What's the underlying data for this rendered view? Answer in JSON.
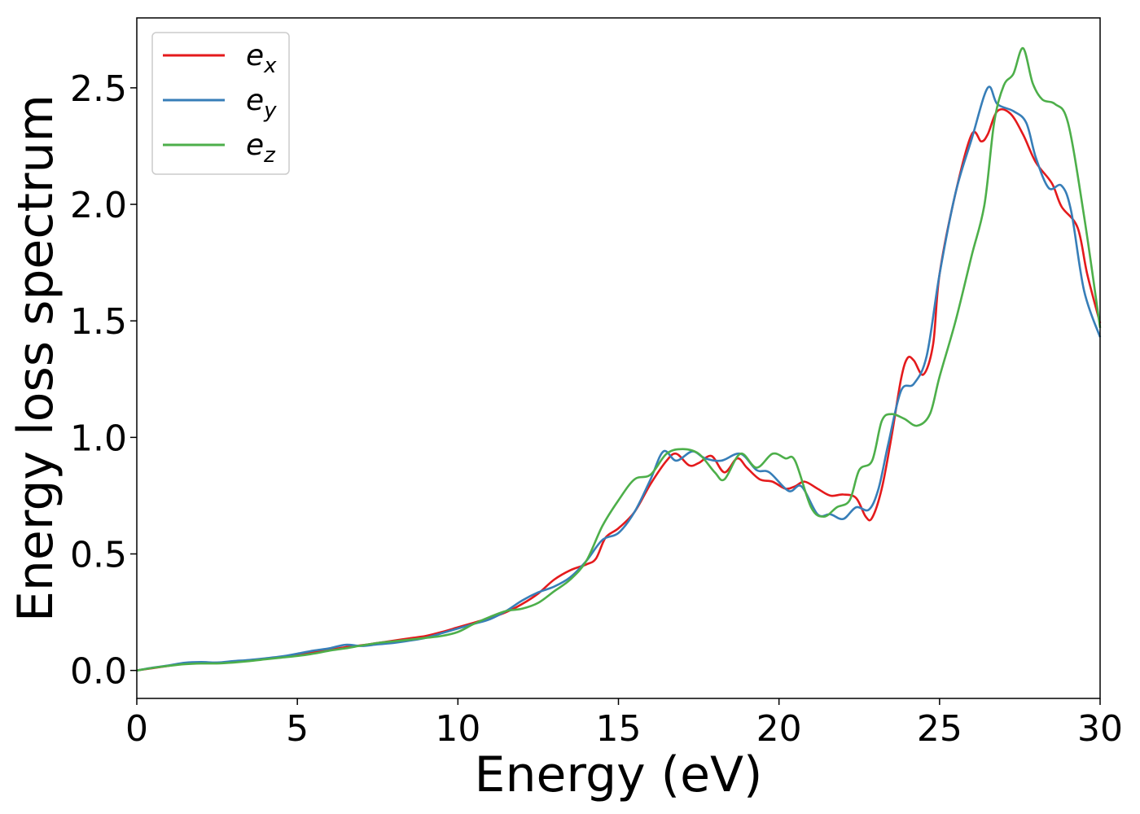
{
  "chart_data": {
    "type": "line",
    "title": "",
    "xlabel": "Energy (eV)",
    "ylabel": "Energy loss spectrum",
    "xlim": [
      0,
      30
    ],
    "ylim": [
      -0.12,
      2.8
    ],
    "xticks": [
      0,
      5,
      10,
      15,
      20,
      25,
      30
    ],
    "xtick_labels": [
      "0",
      "5",
      "10",
      "15",
      "20",
      "25",
      "30"
    ],
    "yticks": [
      0.0,
      0.5,
      1.0,
      1.5,
      2.0,
      2.5
    ],
    "ytick_labels": [
      "0.0",
      "0.5",
      "1.0",
      "1.5",
      "2.0",
      "2.5"
    ],
    "grid": false,
    "legend_position": "top-left",
    "series": [
      {
        "name": "e",
        "sub": "x",
        "color": "#e41a1c",
        "points": [
          [
            0,
            0.0
          ],
          [
            0.5,
            0.01
          ],
          [
            1,
            0.02
          ],
          [
            1.5,
            0.03
          ],
          [
            2,
            0.032
          ],
          [
            2.5,
            0.033
          ],
          [
            3,
            0.037
          ],
          [
            3.5,
            0.042
          ],
          [
            4,
            0.05
          ],
          [
            4.5,
            0.058
          ],
          [
            5,
            0.067
          ],
          [
            5.5,
            0.078
          ],
          [
            6,
            0.088
          ],
          [
            6.5,
            0.1
          ],
          [
            7,
            0.108
          ],
          [
            7.5,
            0.118
          ],
          [
            8,
            0.128
          ],
          [
            8.5,
            0.138
          ],
          [
            9,
            0.148
          ],
          [
            9.5,
            0.165
          ],
          [
            10,
            0.185
          ],
          [
            10.5,
            0.205
          ],
          [
            11,
            0.225
          ],
          [
            11.5,
            0.25
          ],
          [
            12,
            0.285
          ],
          [
            12.5,
            0.33
          ],
          [
            13,
            0.39
          ],
          [
            13.5,
            0.43
          ],
          [
            14,
            0.455
          ],
          [
            14.3,
            0.48
          ],
          [
            14.6,
            0.57
          ],
          [
            15,
            0.61
          ],
          [
            15.5,
            0.68
          ],
          [
            16,
            0.8
          ],
          [
            16.5,
            0.9
          ],
          [
            16.8,
            0.93
          ],
          [
            17.2,
            0.88
          ],
          [
            17.5,
            0.89
          ],
          [
            17.9,
            0.92
          ],
          [
            18.3,
            0.85
          ],
          [
            18.7,
            0.91
          ],
          [
            19,
            0.87
          ],
          [
            19.4,
            0.82
          ],
          [
            19.8,
            0.81
          ],
          [
            20.2,
            0.78
          ],
          [
            20.5,
            0.79
          ],
          [
            20.8,
            0.81
          ],
          [
            21.2,
            0.78
          ],
          [
            21.6,
            0.75
          ],
          [
            22,
            0.755
          ],
          [
            22.4,
            0.74
          ],
          [
            22.7,
            0.66
          ],
          [
            22.9,
            0.655
          ],
          [
            23.2,
            0.78
          ],
          [
            23.5,
            1.0
          ],
          [
            23.8,
            1.25
          ],
          [
            24,
            1.34
          ],
          [
            24.2,
            1.33
          ],
          [
            24.5,
            1.27
          ],
          [
            24.8,
            1.4
          ],
          [
            25,
            1.7
          ],
          [
            25.5,
            2.05
          ],
          [
            26,
            2.3
          ],
          [
            26.3,
            2.27
          ],
          [
            26.5,
            2.3
          ],
          [
            26.8,
            2.4
          ],
          [
            27.2,
            2.39
          ],
          [
            27.6,
            2.3
          ],
          [
            28,
            2.18
          ],
          [
            28.5,
            2.09
          ],
          [
            28.8,
            1.99
          ],
          [
            29.3,
            1.9
          ],
          [
            29.6,
            1.7
          ],
          [
            30,
            1.49
          ]
        ]
      },
      {
        "name": "e",
        "sub": "y",
        "color": "#377eb8",
        "points": [
          [
            0,
            0.0
          ],
          [
            0.5,
            0.012
          ],
          [
            1,
            0.022
          ],
          [
            1.5,
            0.033
          ],
          [
            2,
            0.036
          ],
          [
            2.5,
            0.034
          ],
          [
            3,
            0.04
          ],
          [
            3.5,
            0.045
          ],
          [
            4,
            0.052
          ],
          [
            4.5,
            0.06
          ],
          [
            5,
            0.072
          ],
          [
            5.5,
            0.085
          ],
          [
            6,
            0.095
          ],
          [
            6.5,
            0.11
          ],
          [
            7,
            0.105
          ],
          [
            7.5,
            0.112
          ],
          [
            8,
            0.118
          ],
          [
            8.5,
            0.128
          ],
          [
            9,
            0.14
          ],
          [
            9.5,
            0.16
          ],
          [
            10,
            0.18
          ],
          [
            10.5,
            0.2
          ],
          [
            11,
            0.22
          ],
          [
            11.5,
            0.255
          ],
          [
            12,
            0.3
          ],
          [
            12.5,
            0.335
          ],
          [
            13,
            0.36
          ],
          [
            13.5,
            0.4
          ],
          [
            14,
            0.47
          ],
          [
            14.5,
            0.56
          ],
          [
            15,
            0.59
          ],
          [
            15.5,
            0.68
          ],
          [
            16,
            0.82
          ],
          [
            16.4,
            0.94
          ],
          [
            16.8,
            0.9
          ],
          [
            17.3,
            0.94
          ],
          [
            17.7,
            0.91
          ],
          [
            18.2,
            0.9
          ],
          [
            18.8,
            0.93
          ],
          [
            19.3,
            0.86
          ],
          [
            19.7,
            0.85
          ],
          [
            20.3,
            0.77
          ],
          [
            20.7,
            0.79
          ],
          [
            21.2,
            0.67
          ],
          [
            21.6,
            0.67
          ],
          [
            22,
            0.65
          ],
          [
            22.4,
            0.7
          ],
          [
            22.8,
            0.69
          ],
          [
            23.1,
            0.78
          ],
          [
            23.4,
            0.97
          ],
          [
            23.8,
            1.2
          ],
          [
            24.2,
            1.23
          ],
          [
            24.6,
            1.35
          ],
          [
            25,
            1.7
          ],
          [
            25.5,
            2.05
          ],
          [
            26,
            2.28
          ],
          [
            26.5,
            2.5
          ],
          [
            26.8,
            2.43
          ],
          [
            27.3,
            2.4
          ],
          [
            27.7,
            2.35
          ],
          [
            28,
            2.2
          ],
          [
            28.4,
            2.07
          ],
          [
            28.8,
            2.08
          ],
          [
            29.1,
            1.97
          ],
          [
            29.5,
            1.63
          ],
          [
            30,
            1.43
          ]
        ]
      },
      {
        "name": "e",
        "sub": "z",
        "color": "#4daf4a",
        "points": [
          [
            0,
            0.0
          ],
          [
            0.5,
            0.011
          ],
          [
            1,
            0.02
          ],
          [
            1.5,
            0.027
          ],
          [
            2,
            0.03
          ],
          [
            2.5,
            0.03
          ],
          [
            3,
            0.034
          ],
          [
            3.5,
            0.04
          ],
          [
            4,
            0.048
          ],
          [
            4.5,
            0.055
          ],
          [
            5,
            0.062
          ],
          [
            5.5,
            0.072
          ],
          [
            6,
            0.085
          ],
          [
            6.5,
            0.095
          ],
          [
            7,
            0.107
          ],
          [
            7.5,
            0.118
          ],
          [
            8,
            0.125
          ],
          [
            8.5,
            0.132
          ],
          [
            9,
            0.14
          ],
          [
            9.5,
            0.148
          ],
          [
            10,
            0.165
          ],
          [
            10.5,
            0.2
          ],
          [
            11,
            0.23
          ],
          [
            11.5,
            0.255
          ],
          [
            12,
            0.265
          ],
          [
            12.5,
            0.29
          ],
          [
            13,
            0.34
          ],
          [
            13.5,
            0.39
          ],
          [
            14,
            0.47
          ],
          [
            14.5,
            0.62
          ],
          [
            15,
            0.73
          ],
          [
            15.5,
            0.82
          ],
          [
            16,
            0.84
          ],
          [
            16.5,
            0.93
          ],
          [
            17,
            0.95
          ],
          [
            17.5,
            0.93
          ],
          [
            18,
            0.85
          ],
          [
            18.3,
            0.82
          ],
          [
            18.8,
            0.93
          ],
          [
            19.3,
            0.87
          ],
          [
            19.8,
            0.93
          ],
          [
            20.2,
            0.91
          ],
          [
            20.5,
            0.9
          ],
          [
            21,
            0.7
          ],
          [
            21.4,
            0.66
          ],
          [
            21.8,
            0.7
          ],
          [
            22.2,
            0.73
          ],
          [
            22.5,
            0.86
          ],
          [
            22.9,
            0.9
          ],
          [
            23.2,
            1.07
          ],
          [
            23.5,
            1.1
          ],
          [
            23.9,
            1.08
          ],
          [
            24.3,
            1.05
          ],
          [
            24.7,
            1.1
          ],
          [
            25,
            1.26
          ],
          [
            25.5,
            1.5
          ],
          [
            26,
            1.78
          ],
          [
            26.4,
            2.0
          ],
          [
            26.7,
            2.35
          ],
          [
            27,
            2.51
          ],
          [
            27.3,
            2.56
          ],
          [
            27.6,
            2.67
          ],
          [
            27.9,
            2.52
          ],
          [
            28.2,
            2.45
          ],
          [
            28.6,
            2.43
          ],
          [
            29,
            2.35
          ],
          [
            29.5,
            1.95
          ],
          [
            30,
            1.47
          ]
        ]
      }
    ]
  }
}
